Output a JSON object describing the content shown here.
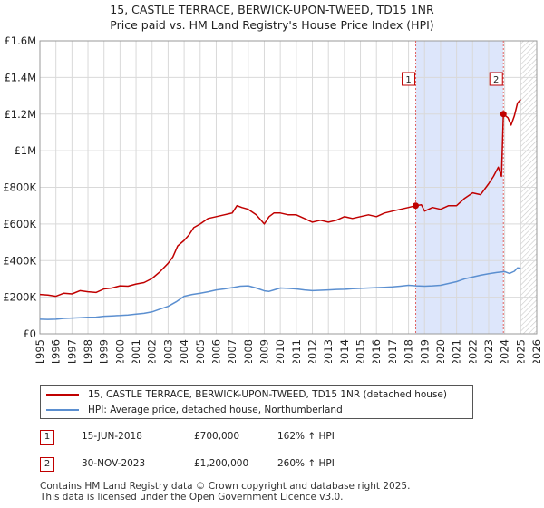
{
  "title": {
    "line1": "15, CASTLE TERRACE, BERWICK-UPON-TWEED, TD15 1NR",
    "line2": "Price paid vs. HM Land Registry's House Price Index (HPI)"
  },
  "chart_data": {
    "type": "line",
    "title": "15, CASTLE TERRACE, BERWICK-UPON-TWEED, TD15 1NR",
    "subtitle": "Price paid vs. HM Land Registry's House Price Index (HPI)",
    "xlabel": "",
    "ylabel": "",
    "xlim": [
      1995,
      2026
    ],
    "ylim": [
      0,
      1600000
    ],
    "grid": true,
    "y_ticks": [
      0,
      200000,
      400000,
      600000,
      800000,
      1000000,
      1200000,
      1400000,
      1600000
    ],
    "y_tick_labels": [
      "£0",
      "£200K",
      "£400K",
      "£600K",
      "£800K",
      "£1M",
      "£1.2M",
      "£1.4M",
      "£1.6M"
    ],
    "x_ticks": [
      1995,
      1996,
      1997,
      1998,
      1999,
      2000,
      2001,
      2002,
      2003,
      2004,
      2005,
      2006,
      2007,
      2008,
      2009,
      2010,
      2011,
      2012,
      2013,
      2014,
      2015,
      2016,
      2017,
      2018,
      2019,
      2020,
      2021,
      2022,
      2023,
      2024,
      2025,
      2026
    ],
    "shaded_region": {
      "from": 2018.45,
      "to": 2023.92,
      "color": "#dde6fb"
    },
    "hatched_region_from": 2025.0,
    "series": [
      {
        "name": "15, CASTLE TERRACE, BERWICK-UPON-TWEED, TD15 1NR (detached house)",
        "color": "#c00000",
        "x": [
          1995,
          1995.5,
          1996,
          1996.5,
          1997,
          1997.5,
          1998,
          1998.5,
          1999,
          1999.5,
          2000,
          2000.5,
          2001,
          2001.5,
          2002,
          2002.5,
          2003,
          2003.3,
          2003.6,
          2004,
          2004.3,
          2004.6,
          2005,
          2005.5,
          2006,
          2006.5,
          2007,
          2007.3,
          2007.6,
          2008,
          2008.5,
          2009,
          2009.3,
          2009.6,
          2010,
          2010.5,
          2011,
          2011.5,
          2012,
          2012.5,
          2013,
          2013.5,
          2014,
          2014.5,
          2015,
          2015.5,
          2016,
          2016.5,
          2017,
          2017.5,
          2018,
          2018.45,
          2018.8,
          2019,
          2019.5,
          2020,
          2020.5,
          2021,
          2021.5,
          2022,
          2022.5,
          2023,
          2023.3,
          2023.6,
          2023.8,
          2023.92,
          2024.2,
          2024.4,
          2024.6,
          2024.8,
          2025
        ],
        "values": [
          215000,
          212000,
          205000,
          222000,
          218000,
          236000,
          230000,
          226000,
          245000,
          250000,
          262000,
          260000,
          272000,
          280000,
          302000,
          340000,
          385000,
          420000,
          480000,
          510000,
          540000,
          580000,
          600000,
          630000,
          640000,
          650000,
          660000,
          700000,
          690000,
          680000,
          650000,
          600000,
          640000,
          660000,
          660000,
          650000,
          650000,
          630000,
          610000,
          620000,
          610000,
          620000,
          640000,
          630000,
          640000,
          650000,
          640000,
          660000,
          670000,
          680000,
          690000,
          700000,
          705000,
          670000,
          690000,
          680000,
          700000,
          700000,
          740000,
          770000,
          760000,
          820000,
          860000,
          910000,
          860000,
          1200000,
          1180000,
          1140000,
          1190000,
          1260000,
          1280000
        ]
      },
      {
        "name": "HPI: Average price, detached house, Northumberland",
        "color": "#5b8fd0",
        "x": [
          1995,
          1995.5,
          1996,
          1996.5,
          1997,
          1997.5,
          1998,
          1998.5,
          1999,
          1999.5,
          2000,
          2000.5,
          2001,
          2001.5,
          2002,
          2002.5,
          2003,
          2003.5,
          2004,
          2004.5,
          2005,
          2005.5,
          2006,
          2006.5,
          2007,
          2007.5,
          2008,
          2008.5,
          2009,
          2009.3,
          2009.6,
          2010,
          2010.5,
          2011,
          2011.5,
          2012,
          2012.5,
          2013,
          2013.5,
          2014,
          2014.5,
          2015,
          2015.5,
          2016,
          2016.5,
          2017,
          2017.5,
          2018,
          2018.5,
          2019,
          2019.5,
          2020,
          2020.5,
          2021,
          2021.5,
          2022,
          2022.5,
          2023,
          2023.5,
          2024,
          2024.3,
          2024.6,
          2024.8,
          2025
        ],
        "values": [
          80000,
          79000,
          80000,
          84000,
          86000,
          88000,
          90000,
          91000,
          96000,
          98000,
          100000,
          103000,
          108000,
          112000,
          120000,
          135000,
          150000,
          175000,
          205000,
          215000,
          222000,
          230000,
          240000,
          245000,
          252000,
          260000,
          262000,
          250000,
          235000,
          232000,
          240000,
          250000,
          248000,
          245000,
          240000,
          236000,
          238000,
          240000,
          242000,
          243000,
          246000,
          248000,
          250000,
          252000,
          254000,
          256000,
          260000,
          265000,
          262000,
          260000,
          262000,
          265000,
          275000,
          285000,
          300000,
          310000,
          320000,
          328000,
          335000,
          340000,
          330000,
          342000,
          360000,
          358000
        ]
      }
    ],
    "annotations": [
      {
        "label": "1",
        "x": 2018.45,
        "y": 700000
      },
      {
        "label": "2",
        "x": 2023.92,
        "y": 1200000
      }
    ]
  },
  "legend": {
    "items": [
      {
        "label": "15, CASTLE TERRACE, BERWICK-UPON-TWEED, TD15 1NR (detached house)",
        "color": "#c00000"
      },
      {
        "label": "HPI: Average price, detached house, Northumberland",
        "color": "#5b8fd0"
      }
    ]
  },
  "sales": [
    {
      "num": "1",
      "date": "15-JUN-2018",
      "price": "£700,000",
      "hpi": "162% ↑ HPI"
    },
    {
      "num": "2",
      "date": "30-NOV-2023",
      "price": "£1,200,000",
      "hpi": "260% ↑ HPI"
    }
  ],
  "footer": {
    "line1": "Contains HM Land Registry data © Crown copyright and database right 2025.",
    "line2": "This data is licensed under the Open Government Licence v3.0."
  }
}
